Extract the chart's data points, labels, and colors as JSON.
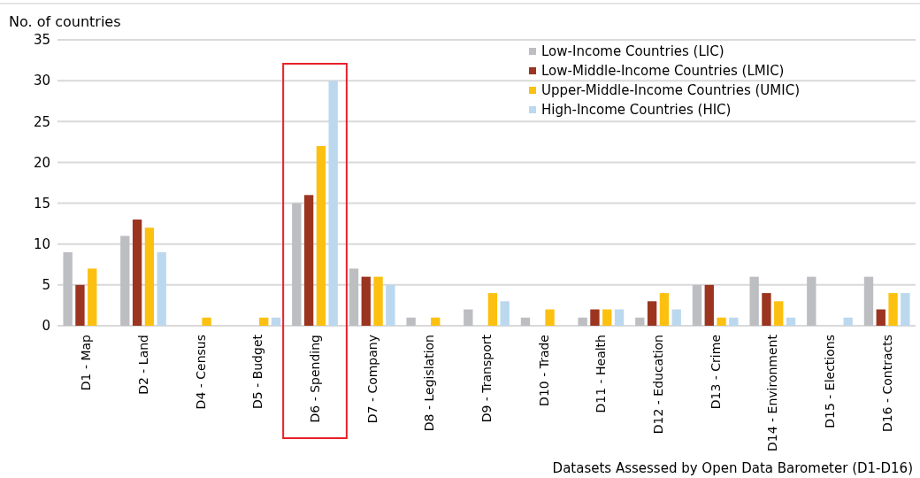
{
  "chart_data": {
    "type": "bar",
    "ylabel": "No. of countries",
    "xlabel": "Datasets Assessed by Open Data Barometer (D1-D16)",
    "categories": [
      "D1 - Map",
      "D2 - Land",
      "D4 - Census",
      "D5 - Budget",
      "D6 - Spending",
      "D7 - Company",
      "D8 - Legislation",
      "D9 - Transport",
      "D10 - Trade",
      "D11 - Health",
      "D12 - Education",
      "D13 - Crime",
      "D14 - Environment",
      "D15 - Elections",
      "D16 - Contracts"
    ],
    "series": [
      {
        "name": "Low-Income Countries (LIC)",
        "color": "#bdbec2",
        "values": [
          9,
          11,
          0,
          0,
          15,
          7,
          1,
          2,
          1,
          1,
          1,
          5,
          6,
          6,
          6
        ]
      },
      {
        "name": "Low-Middle-Income Countries (LMIC)",
        "color": "#9b3520",
        "values": [
          5,
          13,
          0,
          0,
          16,
          6,
          0,
          0,
          0,
          2,
          3,
          5,
          4,
          0,
          2
        ]
      },
      {
        "name": "Upper-Middle-Income Countries (UMIC)",
        "color": "#fcc010",
        "values": [
          7,
          12,
          1,
          1,
          22,
          6,
          1,
          4,
          2,
          2,
          4,
          1,
          3,
          0,
          4
        ]
      },
      {
        "name": "High-Income Countries (HIC)",
        "color": "#bcd8ee",
        "values": [
          0,
          9,
          0,
          1,
          30,
          5,
          0,
          3,
          0,
          2,
          2,
          1,
          1,
          1,
          4
        ]
      }
    ],
    "ylim": [
      0,
      35
    ],
    "yticks": [
      0,
      5,
      10,
      15,
      20,
      25,
      30,
      35
    ],
    "grid": "y",
    "legend": "top right"
  }
}
